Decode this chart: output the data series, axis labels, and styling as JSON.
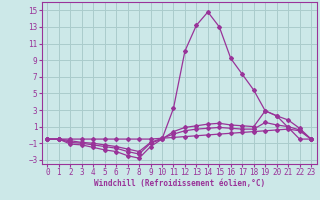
{
  "xlabel": "Windchill (Refroidissement éolien,°C)",
  "background_color": "#cce8e8",
  "line_color": "#993399",
  "grid_color": "#aacccc",
  "spine_color": "#993399",
  "xlim": [
    -0.5,
    23.5
  ],
  "ylim": [
    -3.5,
    16.0
  ],
  "xticks": [
    0,
    1,
    2,
    3,
    4,
    5,
    6,
    7,
    8,
    9,
    10,
    11,
    12,
    13,
    14,
    15,
    16,
    17,
    18,
    19,
    20,
    21,
    22,
    23
  ],
  "yticks": [
    -3,
    -1,
    1,
    3,
    5,
    7,
    9,
    11,
    13,
    15
  ],
  "lines": [
    {
      "x": [
        0,
        1,
        2,
        3,
        4,
        5,
        6,
        7,
        8,
        9,
        10,
        11,
        12,
        13,
        14,
        15,
        16,
        17,
        18,
        19,
        20,
        21,
        22,
        23
      ],
      "y": [
        -0.5,
        -0.5,
        -1.1,
        -1.2,
        -1.5,
        -1.8,
        -2.0,
        -2.5,
        -2.8,
        -1.4,
        -0.5,
        3.2,
        10.1,
        13.2,
        14.8,
        13.0,
        9.2,
        7.3,
        5.4,
        2.9,
        2.3,
        0.9,
        -0.5,
        -0.5
      ]
    },
    {
      "x": [
        0,
        1,
        2,
        3,
        4,
        5,
        6,
        7,
        8,
        9,
        10,
        11,
        12,
        13,
        14,
        15,
        16,
        17,
        18,
        19,
        20,
        21,
        22,
        23
      ],
      "y": [
        -0.5,
        -0.5,
        -0.9,
        -1.0,
        -1.2,
        -1.4,
        -1.6,
        -2.0,
        -2.3,
        -1.0,
        -0.5,
        0.4,
        0.9,
        1.1,
        1.3,
        1.4,
        1.2,
        1.1,
        1.0,
        2.9,
        2.3,
        1.8,
        0.8,
        -0.5
      ]
    },
    {
      "x": [
        0,
        1,
        2,
        3,
        4,
        5,
        6,
        7,
        8,
        9,
        10,
        11,
        12,
        13,
        14,
        15,
        16,
        17,
        18,
        19,
        20,
        21,
        22,
        23
      ],
      "y": [
        -0.5,
        -0.5,
        -0.7,
        -0.9,
        -1.0,
        -1.2,
        -1.4,
        -1.7,
        -2.0,
        -0.9,
        -0.4,
        0.1,
        0.5,
        0.7,
        0.8,
        0.9,
        0.8,
        0.7,
        0.7,
        1.5,
        1.2,
        1.0,
        0.6,
        -0.5
      ]
    },
    {
      "x": [
        0,
        1,
        2,
        3,
        4,
        5,
        6,
        7,
        8,
        9,
        10,
        11,
        12,
        13,
        14,
        15,
        16,
        17,
        18,
        19,
        20,
        21,
        22,
        23
      ],
      "y": [
        -0.5,
        -0.5,
        -0.5,
        -0.5,
        -0.5,
        -0.5,
        -0.5,
        -0.5,
        -0.5,
        -0.5,
        -0.4,
        -0.3,
        -0.2,
        -0.1,
        0.0,
        0.1,
        0.2,
        0.3,
        0.4,
        0.5,
        0.6,
        0.7,
        0.5,
        -0.5
      ]
    }
  ]
}
